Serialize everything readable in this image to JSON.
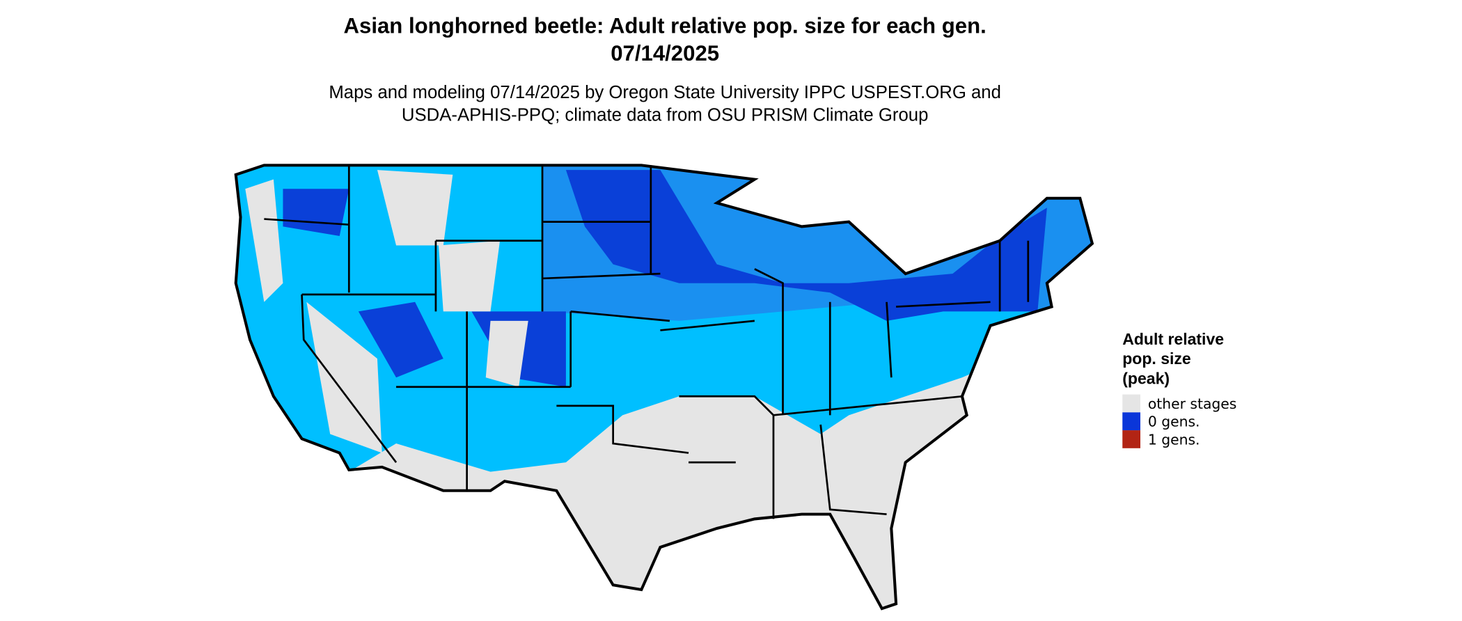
{
  "title": [
    "Asian longhorned beetle: Adult relative pop. size for each gen.",
    "07/14/2025"
  ],
  "subtitle": [
    "Maps and modeling 07/14/2025 by Oregon State University IPPC USPEST.ORG and",
    "USDA-APHIS-PPQ; climate data from OSU PRISM Climate Group"
  ],
  "legend": {
    "title": [
      "Adult relative",
      "pop. size",
      "(peak)"
    ],
    "items": [
      {
        "label": "other stages",
        "color": "#e5e5e5"
      },
      {
        "label": "0 gens.",
        "color": "#0a36d9"
      },
      {
        "label": "1 gens.",
        "color": "#b22414"
      }
    ]
  }
}
